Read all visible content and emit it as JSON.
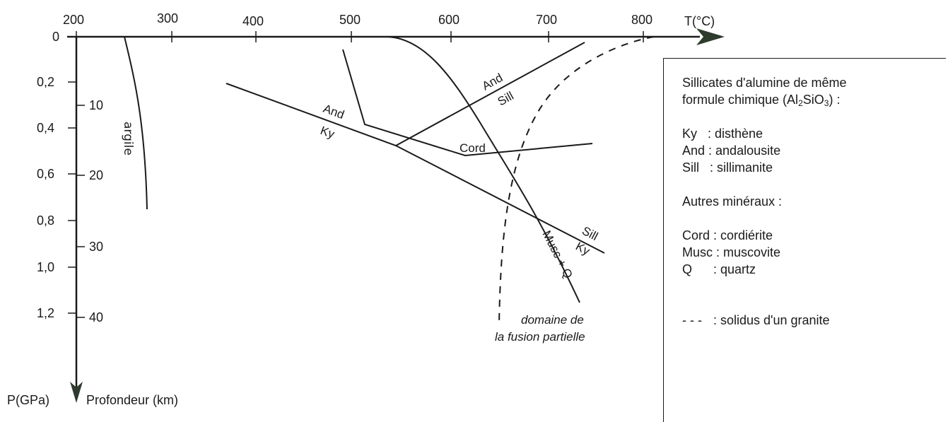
{
  "axes": {
    "temperature": {
      "label": "T(°C)",
      "ticks": [
        "200",
        "300",
        "400",
        "500",
        "600",
        "700",
        "800"
      ]
    },
    "pressure": {
      "label": "P(GPa)",
      "ticks": [
        "0",
        "0,2",
        "0,4",
        "0,6",
        "0,8",
        "1,0",
        "1,2"
      ]
    },
    "depth": {
      "label": "Profondeur (km)",
      "ticks": [
        "10",
        "20",
        "30",
        "40"
      ]
    }
  },
  "curve_labels": {
    "argile": "argile",
    "and_sill_top": "And",
    "and_sill_bottom": "Sill",
    "and_ky_top": "And",
    "and_ky_bottom": "Ky",
    "cord": "Cord",
    "sill_ky_top": "Sill",
    "sill_ky_bottom": "Ky",
    "musc": "Musc + Q",
    "fusion_line1": "domaine de",
    "fusion_line2": "la fusion partielle"
  },
  "legend": {
    "title_line1": "Sillicates d'alumine de même",
    "title_line2_prefix": "formule chimique (Al",
    "title_sub1": "2",
    "title_mid": "SiO",
    "title_sub2": "3",
    "title_suffix": ") :",
    "ky": "Ky   : disthène",
    "and": "And : andalousite",
    "sill": "Sill   : sillimanite",
    "others_title": "Autres minéraux :",
    "cord": "Cord : cordiérite",
    "musc": "Musc : muscovite",
    "q": "Q      : quartz",
    "solidus_symbol": "- - -",
    "solidus": ": solidus d'un granite"
  },
  "colors": {
    "ink": "#1a1a1a",
    "arrow": "#2d3a2d"
  }
}
